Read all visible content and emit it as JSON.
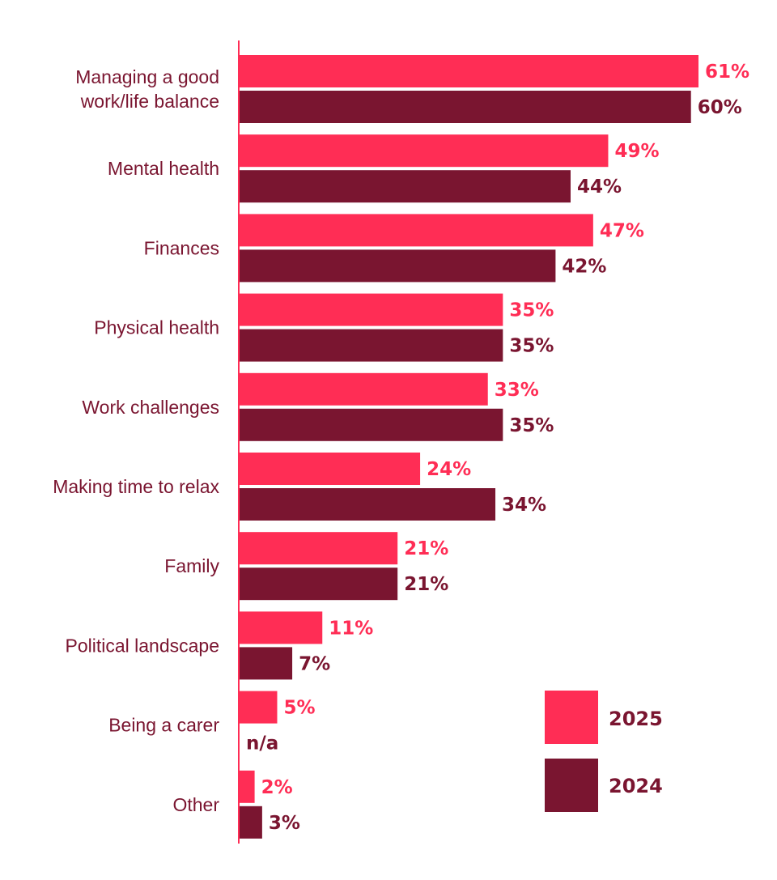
{
  "chart_data": {
    "type": "bar",
    "orientation": "horizontal",
    "title": "",
    "xlabel": "",
    "ylabel": "",
    "xlim": [
      0,
      61
    ],
    "grid": false,
    "legend_position": "bottom-right",
    "categories": [
      [
        "Managing a good",
        "work/life balance"
      ],
      [
        "Mental health"
      ],
      [
        "Finances"
      ],
      [
        "Physical health"
      ],
      [
        "Work challenges"
      ],
      [
        "Making time to relax"
      ],
      [
        "Family"
      ],
      [
        "Political landscape"
      ],
      [
        "Being a carer"
      ],
      [
        "Other"
      ]
    ],
    "series": [
      {
        "name": "2025",
        "color": "#ff2d55",
        "values": [
          61,
          49,
          47,
          35,
          33,
          24,
          21,
          11,
          5,
          2
        ],
        "labels": [
          "61%",
          "49%",
          "47%",
          "35%",
          "33%",
          "24%",
          "21%",
          "11%",
          "5%",
          "2%"
        ]
      },
      {
        "name": "2024",
        "color": "#7a1530",
        "values": [
          60,
          44,
          42,
          35,
          35,
          34,
          21,
          7,
          null,
          3
        ],
        "labels": [
          "60%",
          "44%",
          "42%",
          "35%",
          "35%",
          "34%",
          "21%",
          "7%",
          "n/a",
          "3%"
        ]
      }
    ]
  }
}
